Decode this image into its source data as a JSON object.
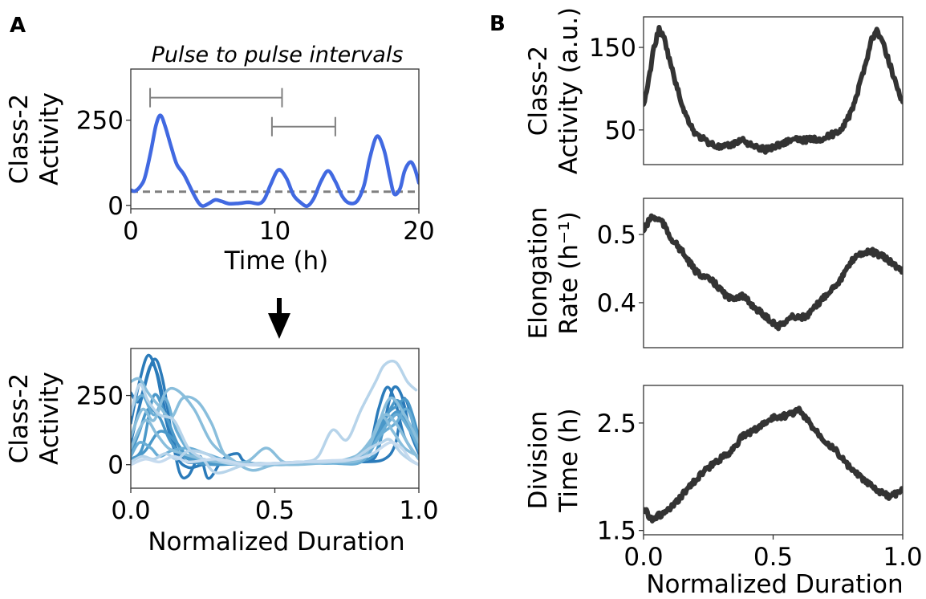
{
  "figure": {
    "panel_labels": [
      "A",
      "B"
    ],
    "arrow": "down-arrow"
  },
  "chart_data": [
    {
      "id": "A-top",
      "type": "line",
      "title": "Pulse to pulse intervals",
      "xlabel": "Time (h)",
      "ylabel": [
        "Class-2",
        "Activity"
      ],
      "xlim": [
        0,
        20
      ],
      "ylim": [
        -10,
        400
      ],
      "xticks": [
        0,
        10,
        20
      ],
      "xtick_labels": [
        "0",
        "10",
        "20"
      ],
      "yticks": [
        0,
        250
      ],
      "ytick_labels": [
        "0",
        "250"
      ],
      "grid": false,
      "series": [
        {
          "name": "Class-2 activity",
          "color": "#4169e1",
          "x": [
            0,
            0.3,
            0.7,
            1.0,
            1.4,
            1.75,
            2.06,
            2.4,
            2.8,
            3.2,
            3.7,
            4.3,
            4.7,
            5.0,
            5.4,
            5.85,
            6.3,
            6.8,
            7.5,
            8.2,
            8.9,
            9.3,
            9.7,
            10.25,
            10.8,
            11.3,
            11.8,
            12.25,
            12.7,
            13.2,
            13.7,
            14.2,
            14.7,
            15.15,
            15.7,
            16.2,
            16.6,
            17.1,
            17.6,
            18.0,
            18.3,
            18.7,
            19.0,
            19.4,
            19.7,
            20.0
          ],
          "y": [
            45,
            42,
            58,
            85,
            160,
            235,
            264,
            230,
            172,
            120,
            90,
            38,
            8,
            -2,
            5,
            16,
            12,
            5,
            6,
            9,
            5,
            20,
            60,
            104,
            80,
            30,
            8,
            -2,
            20,
            70,
            101,
            70,
            25,
            7,
            12,
            60,
            140,
            203,
            160,
            80,
            33,
            50,
            100,
            127,
            110,
            66
          ]
        }
      ],
      "reference_line": {
        "y": 40,
        "style": "dashed",
        "color": "#808080"
      },
      "interval_bars": [
        {
          "x_start": 1.34,
          "x_end": 10.5,
          "y": 316,
          "color": "#808080"
        },
        {
          "x_start": 9.8,
          "x_end": 14.2,
          "y": 231,
          "color": "#808080"
        }
      ]
    },
    {
      "id": "A-bottom",
      "type": "line",
      "title": "",
      "xlabel": "Normalized Duration",
      "ylabel": [
        "Class-2",
        "Activity"
      ],
      "xlim": [
        0,
        1
      ],
      "ylim": [
        -85,
        420
      ],
      "xticks": [
        0,
        0.5,
        1
      ],
      "xtick_labels": [
        "0.0",
        "0.5",
        "1.0"
      ],
      "yticks": [
        0,
        250
      ],
      "ytick_labels": [
        "0",
        "250"
      ],
      "grid": false,
      "series": [
        {
          "name": "cell-1",
          "color": "#2b7bba",
          "x": [
            0,
            0.03,
            0.06,
            0.09,
            0.12,
            0.16,
            0.2,
            0.25,
            0.3,
            0.4,
            0.5,
            0.6,
            0.7,
            0.8,
            0.85,
            0.88,
            0.91,
            0.94,
            0.97,
            1.0
          ],
          "y": [
            150,
            300,
            395,
            330,
            170,
            30,
            -10,
            0,
            5,
            0,
            0,
            5,
            10,
            12,
            30,
            150,
            275,
            250,
            120,
            40
          ]
        },
        {
          "name": "cell-2",
          "color": "#2b7bba",
          "x": [
            0,
            0.04,
            0.08,
            0.11,
            0.14,
            0.17,
            0.2,
            0.24,
            0.27,
            0.32,
            0.37,
            0.4,
            0.5,
            0.6,
            0.7,
            0.8,
            0.88,
            0.92,
            0.95,
            1.0
          ],
          "y": [
            80,
            250,
            380,
            310,
            120,
            -30,
            -40,
            30,
            -50,
            20,
            40,
            10,
            0,
            5,
            10,
            10,
            20,
            80,
            240,
            60
          ]
        },
        {
          "name": "cell-3",
          "color": "#2b7bba",
          "x": [
            0,
            0.03,
            0.07,
            0.1,
            0.13,
            0.18,
            0.25,
            0.35,
            0.45,
            0.55,
            0.65,
            0.75,
            0.82,
            0.86,
            0.89,
            0.92,
            0.95,
            1.0
          ],
          "y": [
            260,
            230,
            360,
            300,
            140,
            20,
            10,
            5,
            0,
            5,
            8,
            10,
            40,
            200,
            280,
            220,
            100,
            20
          ]
        },
        {
          "name": "cell-4",
          "color": "#4a98c9",
          "x": [
            0,
            0.03,
            0.06,
            0.1,
            0.14,
            0.2,
            0.3,
            0.4,
            0.5,
            0.6,
            0.7,
            0.8,
            0.85,
            0.9,
            0.93,
            0.96,
            1.0
          ],
          "y": [
            40,
            120,
            200,
            170,
            80,
            20,
            5,
            0,
            5,
            10,
            10,
            20,
            80,
            200,
            230,
            150,
            50
          ]
        },
        {
          "name": "cell-5",
          "color": "#4a98c9",
          "x": [
            0,
            0.04,
            0.08,
            0.12,
            0.17,
            0.22,
            0.3,
            0.4,
            0.5,
            0.6,
            0.7,
            0.78,
            0.83,
            0.88,
            0.92,
            0.96,
            1.0
          ],
          "y": [
            20,
            60,
            250,
            180,
            60,
            10,
            0,
            5,
            0,
            5,
            10,
            15,
            60,
            170,
            210,
            230,
            100
          ]
        },
        {
          "name": "cell-6",
          "color": "#4a98c9",
          "x": [
            0,
            0.05,
            0.1,
            0.15,
            0.2,
            0.28,
            0.35,
            0.45,
            0.55,
            0.65,
            0.75,
            0.84,
            0.88,
            0.92,
            0.95,
            1.0
          ],
          "y": [
            10,
            50,
            120,
            90,
            30,
            10,
            5,
            0,
            5,
            10,
            10,
            30,
            130,
            190,
            160,
            60
          ]
        },
        {
          "name": "cell-7",
          "color": "#6aaed6",
          "x": [
            0,
            0.04,
            0.08,
            0.12,
            0.16,
            0.22,
            0.3,
            0.4,
            0.5,
            0.6,
            0.7,
            0.8,
            0.86,
            0.9,
            0.93,
            0.97,
            1.0
          ],
          "y": [
            200,
            250,
            180,
            240,
            120,
            30,
            10,
            5,
            0,
            5,
            5,
            10,
            100,
            160,
            180,
            120,
            60
          ]
        },
        {
          "name": "cell-8",
          "color": "#6aaed6",
          "x": [
            0,
            0.03,
            0.07,
            0.1,
            0.14,
            0.2,
            0.26,
            0.35,
            0.45,
            0.55,
            0.65,
            0.75,
            0.82,
            0.87,
            0.92,
            0.96,
            1.0
          ],
          "y": [
            30,
            80,
            60,
            30,
            50,
            60,
            40,
            10,
            0,
            5,
            10,
            15,
            40,
            110,
            150,
            200,
            80
          ]
        },
        {
          "name": "cell-9",
          "color": "#89bedc",
          "x": [
            0,
            0.03,
            0.06,
            0.1,
            0.14,
            0.18,
            0.23,
            0.28,
            0.33,
            0.4,
            0.47,
            0.53,
            0.6,
            0.7,
            0.8,
            0.85,
            0.9,
            0.95,
            1.0
          ],
          "y": [
            300,
            310,
            260,
            210,
            170,
            240,
            230,
            150,
            30,
            10,
            60,
            10,
            5,
            10,
            20,
            120,
            240,
            180,
            80
          ]
        },
        {
          "name": "cell-10",
          "color": "#89bedc",
          "x": [
            0,
            0.04,
            0.08,
            0.12,
            0.16,
            0.22,
            0.28,
            0.35,
            0.42,
            0.5,
            0.6,
            0.7,
            0.78,
            0.84,
            0.88,
            0.92,
            0.96,
            1.0
          ],
          "y": [
            100,
            200,
            160,
            260,
            270,
            200,
            80,
            20,
            -20,
            0,
            5,
            10,
            30,
            100,
            180,
            150,
            80,
            20
          ]
        },
        {
          "name": "cell-11",
          "color": "#89bedc",
          "x": [
            0,
            0.05,
            0.09,
            0.13,
            0.18,
            0.25,
            0.3,
            0.38,
            0.45,
            0.55,
            0.65,
            0.75,
            0.82,
            0.87,
            0.91,
            0.95,
            1.0
          ],
          "y": [
            60,
            160,
            110,
            60,
            40,
            20,
            10,
            0,
            5,
            0,
            5,
            20,
            60,
            170,
            120,
            60,
            30
          ]
        },
        {
          "name": "cell-12",
          "color": "#b7d4ea",
          "x": [
            0,
            0.03,
            0.06,
            0.1,
            0.15,
            0.2,
            0.25,
            0.3,
            0.4,
            0.5,
            0.6,
            0.65,
            0.7,
            0.75,
            0.8,
            0.85,
            0.88,
            0.92,
            0.96,
            0.99
          ],
          "y": [
            180,
            290,
            230,
            180,
            160,
            60,
            20,
            -30,
            0,
            5,
            10,
            30,
            125,
            90,
            200,
            300,
            360,
            370,
            300,
            270
          ]
        },
        {
          "name": "cell-13",
          "color": "#b7d4ea",
          "x": [
            0,
            0.04,
            0.08,
            0.12,
            0.16,
            0.2,
            0.26,
            0.32,
            0.4,
            0.5,
            0.6,
            0.7,
            0.77,
            0.83,
            0.87,
            0.9,
            0.94,
            0.98,
            1.0
          ],
          "y": [
            10,
            30,
            20,
            40,
            20,
            50,
            40,
            10,
            0,
            5,
            10,
            10,
            20,
            60,
            80,
            90,
            40,
            10,
            0
          ]
        },
        {
          "name": "cell-14",
          "color": "#c6dbef",
          "x": [
            0,
            0.05,
            0.1,
            0.15,
            0.2,
            0.3,
            0.4,
            0.5,
            0.6,
            0.7,
            0.78,
            0.84,
            0.9,
            0.94,
            0.97,
            1.0
          ],
          "y": [
            0,
            20,
            10,
            30,
            10,
            20,
            0,
            5,
            10,
            15,
            20,
            40,
            80,
            60,
            20,
            0
          ]
        }
      ]
    },
    {
      "id": "B-top",
      "type": "line",
      "title": "",
      "xlabel": "",
      "ylabel": [
        "Class-2",
        "Activity (a.u.)"
      ],
      "xlim": [
        0,
        1
      ],
      "ylim": [
        8,
        187
      ],
      "yticks": [
        50,
        150
      ],
      "ytick_labels": [
        "50",
        "150"
      ],
      "grid": false,
      "series": [
        {
          "name": "mean class-2 activity",
          "color": "#333333",
          "x": [
            0,
            0.02,
            0.04,
            0.06,
            0.08,
            0.1,
            0.13,
            0.16,
            0.2,
            0.25,
            0.3,
            0.34,
            0.38,
            0.42,
            0.47,
            0.52,
            0.57,
            0.63,
            0.7,
            0.76,
            0.8,
            0.83,
            0.86,
            0.88,
            0.9,
            0.92,
            0.95,
            0.98,
            1.0
          ],
          "y": [
            80,
            110,
            150,
            172,
            160,
            135,
            100,
            70,
            45,
            35,
            28,
            32,
            39,
            30,
            26,
            32,
            38,
            38,
            40,
            50,
            70,
            100,
            135,
            160,
            170,
            158,
            130,
            100,
            84
          ]
        }
      ]
    },
    {
      "id": "B-middle",
      "type": "line",
      "title": "",
      "xlabel": "",
      "ylabel": [
        "Elongation",
        "Rate (h⁻¹)"
      ],
      "xlim": [
        0,
        1
      ],
      "ylim": [
        0.334,
        0.553
      ],
      "yticks": [
        0.4,
        0.5
      ],
      "ytick_labels": [
        "0.4",
        "0.5"
      ],
      "grid": false,
      "series": [
        {
          "name": "mean elongation rate",
          "color": "#333333",
          "x": [
            0,
            0.03,
            0.07,
            0.1,
            0.15,
            0.2,
            0.27,
            0.33,
            0.38,
            0.45,
            0.52,
            0.57,
            0.63,
            0.7,
            0.76,
            0.82,
            0.88,
            0.93,
            1.0
          ],
          "y": [
            0.506,
            0.526,
            0.52,
            0.498,
            0.474,
            0.446,
            0.43,
            0.406,
            0.41,
            0.386,
            0.365,
            0.379,
            0.379,
            0.41,
            0.434,
            0.47,
            0.475,
            0.466,
            0.446
          ]
        }
      ]
    },
    {
      "id": "B-bottom",
      "type": "line",
      "title": "",
      "xlabel": "Normalized Duration",
      "ylabel": [
        "Division",
        "Time (h)"
      ],
      "xlim": [
        0,
        1
      ],
      "ylim": [
        1.46,
        2.85
      ],
      "xticks": [
        0,
        0.5,
        1
      ],
      "xtick_labels": [
        "0.0",
        "0.5",
        "1.0"
      ],
      "yticks": [
        1.5,
        2.5
      ],
      "ytick_labels": [
        "1.5",
        "2.5"
      ],
      "grid": false,
      "series": [
        {
          "name": "mean division time",
          "color": "#333333",
          "x": [
            0,
            0.03,
            0.08,
            0.12,
            0.17,
            0.22,
            0.28,
            0.33,
            0.38,
            0.43,
            0.5,
            0.55,
            0.6,
            0.65,
            0.7,
            0.75,
            0.8,
            0.85,
            0.9,
            0.95,
            1.0
          ],
          "y": [
            1.71,
            1.61,
            1.66,
            1.74,
            1.89,
            2.02,
            2.14,
            2.22,
            2.37,
            2.44,
            2.55,
            2.57,
            2.62,
            2.47,
            2.34,
            2.22,
            2.07,
            1.97,
            1.87,
            1.81,
            1.88
          ]
        }
      ]
    }
  ]
}
